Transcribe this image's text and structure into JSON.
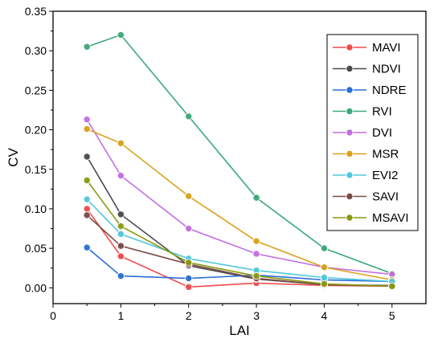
{
  "chart_data": {
    "type": "line",
    "xlabel": "LAI",
    "ylabel": "CV",
    "xlim": [
      0,
      5.5
    ],
    "ylim": [
      -0.02,
      0.35
    ],
    "x_ticks": [
      "0",
      "1",
      "2",
      "3",
      "4",
      "5"
    ],
    "y_ticks": [
      "0.00",
      "0.05",
      "0.10",
      "0.15",
      "0.20",
      "0.25",
      "0.30",
      "0.35"
    ],
    "x": [
      0.5,
      1,
      2,
      3,
      4,
      5
    ],
    "legend_position": "top-right",
    "grid": false,
    "series": [
      {
        "name": "MAVI",
        "color": "#f04a4a",
        "values": [
          0.1,
          0.04,
          0.001,
          0.006,
          0.003,
          0.002
        ]
      },
      {
        "name": "NDVI",
        "color": "#4a4a4a",
        "values": [
          0.166,
          0.093,
          0.028,
          0.011,
          0.004,
          0.003
        ]
      },
      {
        "name": "NDRE",
        "color": "#2a6fd6",
        "values": [
          0.051,
          0.015,
          0.012,
          0.016,
          0.01,
          0.008
        ]
      },
      {
        "name": "RVI",
        "color": "#3aa878",
        "values": [
          0.305,
          0.32,
          0.217,
          0.114,
          0.05,
          0.018
        ]
      },
      {
        "name": "DVI",
        "color": "#c26fe0",
        "values": [
          0.213,
          0.142,
          0.075,
          0.043,
          0.026,
          0.017
        ]
      },
      {
        "name": "MSR",
        "color": "#d9a21b",
        "values": [
          0.201,
          0.183,
          0.116,
          0.059,
          0.026,
          0.01
        ]
      },
      {
        "name": "EVI2",
        "color": "#52c8dc",
        "values": [
          0.112,
          0.068,
          0.037,
          0.022,
          0.013,
          0.008
        ]
      },
      {
        "name": "SAVI",
        "color": "#7a4a44",
        "values": [
          0.092,
          0.053,
          0.03,
          0.012,
          0.004,
          0.002
        ]
      },
      {
        "name": "MSAVI",
        "color": "#8a9a10",
        "values": [
          0.136,
          0.078,
          0.032,
          0.015,
          0.005,
          0.002
        ]
      }
    ]
  }
}
